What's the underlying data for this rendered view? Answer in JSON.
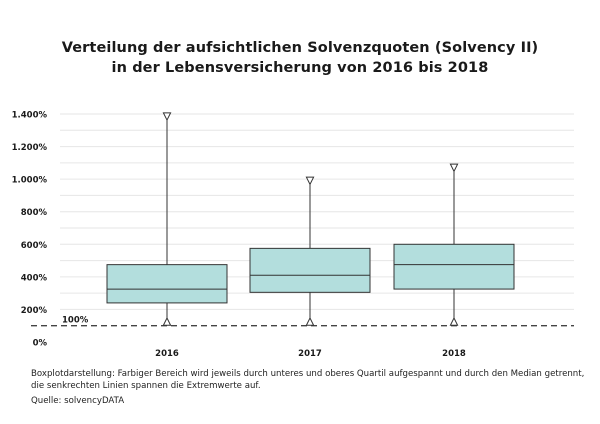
{
  "title_line1": "Verteilung der aufsichtlichen Solvenzquoten (Solvency II)",
  "title_line2": "in der Lebensversicherung von 2016 bis 2018",
  "footnote_line1": "Boxplotdarstellung:  Farbiger Bereich wird jeweils durch unteres und oberes Quartil aufgespannt und durch den Median getrennt,",
  "footnote_line2": "die senkrechten Linien spannen die Extremwerte auf.",
  "source": "Quelle: solvencyDATA",
  "colors": {
    "box_fill": "#b3dedd",
    "box_stroke": "#333333",
    "whisker": "#333333",
    "grid": "#e6e6e6",
    "reference_line": "#444444"
  },
  "chart_data": {
    "type": "boxplot",
    "categories": [
      "2016",
      "2017",
      "2018"
    ],
    "boxes": [
      {
        "category": "2016",
        "min": 125,
        "q1": 240,
        "median": 325,
        "q3": 475,
        "max": 1385
      },
      {
        "category": "2017",
        "min": 125,
        "q1": 305,
        "median": 410,
        "q3": 575,
        "max": 990
      },
      {
        "category": "2018",
        "min": 125,
        "q1": 325,
        "median": 475,
        "q3": 600,
        "max": 1070
      }
    ],
    "ylim": [
      0,
      1400
    ],
    "yticks": [
      0,
      200,
      400,
      600,
      800,
      1000,
      1200,
      1400
    ],
    "ytick_labels": [
      "0%",
      "200%",
      "400%",
      "600%",
      "800%",
      "1.000%",
      "1.200%",
      "1.400%"
    ],
    "minor_grid_step": 100,
    "reference_line": {
      "value": 100,
      "label": "100%"
    },
    "grid": true
  }
}
